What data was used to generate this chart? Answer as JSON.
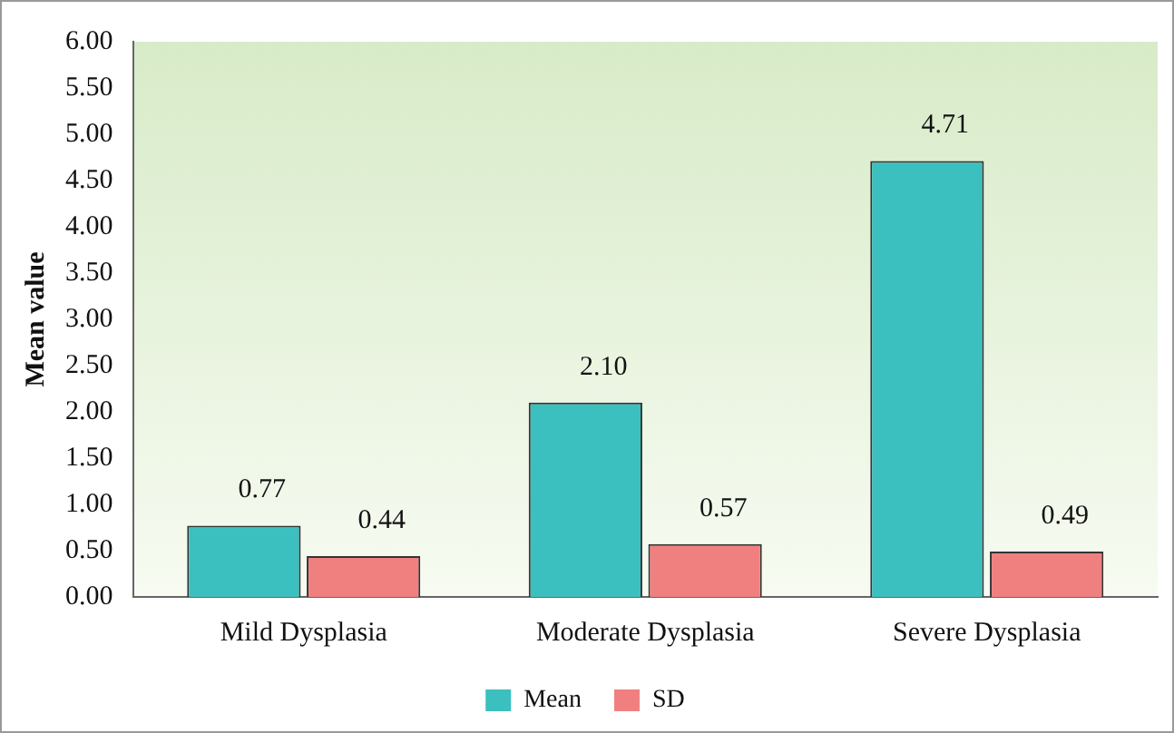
{
  "chart_data": {
    "type": "bar",
    "ylabel": "Mean value",
    "categories": [
      "Mild Dysplasia",
      "Moderate Dysplasia",
      "Severe Dysplasia"
    ],
    "series": [
      {
        "name": "Mean",
        "color": "#3cbfbf",
        "values": [
          0.77,
          2.1,
          4.71
        ],
        "value_labels": [
          "0.77",
          "2.10",
          "4.71"
        ]
      },
      {
        "name": "SD",
        "color": "#f08080",
        "values": [
          0.44,
          0.57,
          0.49
        ],
        "value_labels": [
          "0.44",
          "0.57",
          "0.49"
        ]
      }
    ],
    "ylim": [
      0,
      6
    ],
    "yticks": [
      {
        "value": 0,
        "label": "0.00"
      },
      {
        "value": 0.5,
        "label": "0.50"
      },
      {
        "value": 1,
        "label": "1.00"
      },
      {
        "value": 1.5,
        "label": "1.50"
      },
      {
        "value": 2,
        "label": "2.00"
      },
      {
        "value": 2.5,
        "label": "2.50"
      },
      {
        "value": 3,
        "label": "3.00"
      },
      {
        "value": 3.5,
        "label": "3.50"
      },
      {
        "value": 4,
        "label": "4.00"
      },
      {
        "value": 4.5,
        "label": "4.50"
      },
      {
        "value": 5,
        "label": "5.00"
      },
      {
        "value": 5.5,
        "label": "5.50"
      },
      {
        "value": 6,
        "label": "6.00"
      }
    ],
    "grid": false,
    "legend": "bottom"
  }
}
